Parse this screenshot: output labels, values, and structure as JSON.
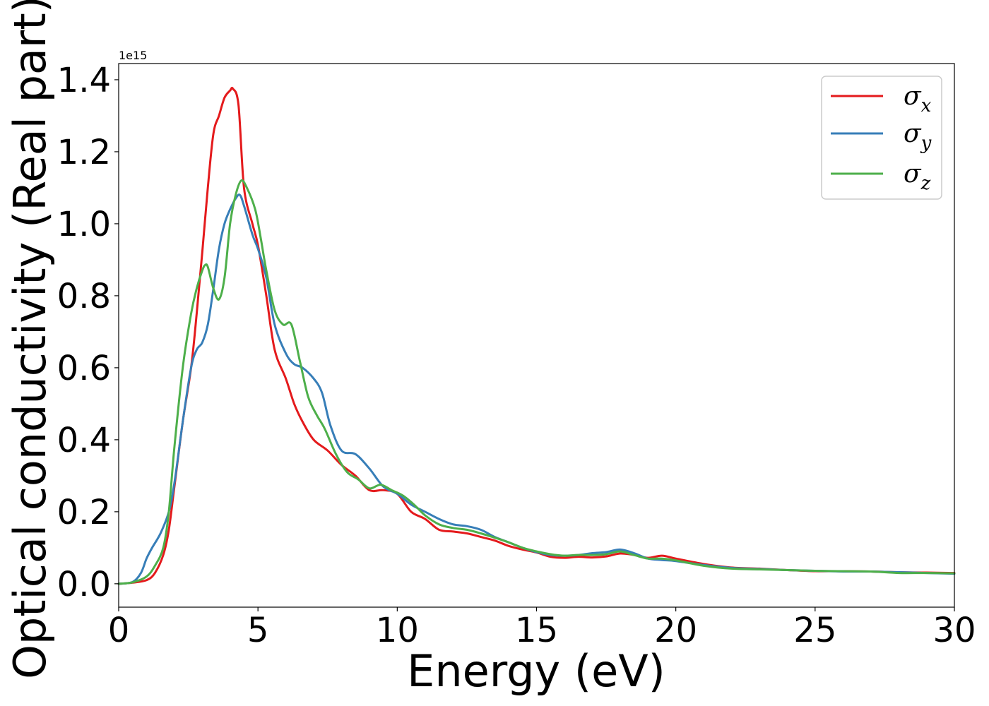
{
  "chart_data": {
    "type": "line",
    "title": "",
    "xlabel": "Energy (eV)",
    "ylabel": "Optical conductivity (Real part)",
    "y_offset_label": "1e15",
    "xlim": [
      0,
      30
    ],
    "ylim": [
      -0.065,
      1.445
    ],
    "x_ticks": [
      0,
      5,
      10,
      15,
      20,
      25,
      30
    ],
    "y_ticks": [
      0.0,
      0.2,
      0.4,
      0.6,
      0.8,
      1.0,
      1.2,
      1.4
    ],
    "x_tick_labels": [
      "0",
      "5",
      "10",
      "15",
      "20",
      "25",
      "30"
    ],
    "y_tick_labels": [
      "0.0",
      "0.2",
      "0.4",
      "0.6",
      "0.8",
      "1.0",
      "1.2",
      "1.4"
    ],
    "grid": false,
    "legend_position": "top-right",
    "series": [
      {
        "name": "σ_x",
        "legend_main": "σ",
        "legend_sub": "x",
        "color": "#e41a1c",
        "x": [
          0,
          0.5,
          1.0,
          1.3,
          1.6,
          1.8,
          2.0,
          2.3,
          2.6,
          2.8,
          3.0,
          3.2,
          3.4,
          3.6,
          3.8,
          4.0,
          4.1,
          4.3,
          4.5,
          4.8,
          5.0,
          5.3,
          5.6,
          6.0,
          6.3,
          6.6,
          7.0,
          7.5,
          8.0,
          8.5,
          9.0,
          9.5,
          10.0,
          10.5,
          11.0,
          11.5,
          12.0,
          12.5,
          13.0,
          13.5,
          14.0,
          14.5,
          15.0,
          15.5,
          16.0,
          16.5,
          17.0,
          17.5,
          18.0,
          18.5,
          19.0,
          19.5,
          20.0,
          21.0,
          22.0,
          23.0,
          24.0,
          25.0,
          26.0,
          27.0,
          28.0,
          29.0,
          30.0
        ],
        "values": [
          0.0,
          0.003,
          0.01,
          0.03,
          0.08,
          0.15,
          0.27,
          0.45,
          0.6,
          0.75,
          0.92,
          1.1,
          1.25,
          1.3,
          1.35,
          1.37,
          1.375,
          1.33,
          1.1,
          1.0,
          0.94,
          0.8,
          0.65,
          0.57,
          0.5,
          0.45,
          0.4,
          0.37,
          0.33,
          0.3,
          0.26,
          0.26,
          0.25,
          0.2,
          0.18,
          0.15,
          0.145,
          0.14,
          0.13,
          0.12,
          0.105,
          0.095,
          0.087,
          0.075,
          0.072,
          0.075,
          0.073,
          0.076,
          0.084,
          0.08,
          0.072,
          0.078,
          0.07,
          0.055,
          0.045,
          0.042,
          0.038,
          0.035,
          0.035,
          0.034,
          0.032,
          0.031,
          0.03
        ]
      },
      {
        "name": "σ_y",
        "legend_main": "σ",
        "legend_sub": "y",
        "color": "#377eb8",
        "x": [
          0,
          0.5,
          0.8,
          1.0,
          1.2,
          1.5,
          1.8,
          2.0,
          2.3,
          2.6,
          2.8,
          3.0,
          3.2,
          3.4,
          3.6,
          3.8,
          4.0,
          4.2,
          4.35,
          4.5,
          4.8,
          5.0,
          5.3,
          5.6,
          6.0,
          6.3,
          6.6,
          7.0,
          7.3,
          7.6,
          8.0,
          8.5,
          9.0,
          9.5,
          10.0,
          10.5,
          11.0,
          11.5,
          12.0,
          12.5,
          13.0,
          13.5,
          14.0,
          14.5,
          15.0,
          15.5,
          16.0,
          16.5,
          17.0,
          17.5,
          18.0,
          18.5,
          19.0,
          19.5,
          20.0,
          21.0,
          22.0,
          23.0,
          24.0,
          25.0,
          26.0,
          27.0,
          28.0,
          29.0,
          30.0
        ],
        "values": [
          0.0,
          0.005,
          0.03,
          0.07,
          0.1,
          0.14,
          0.2,
          0.28,
          0.45,
          0.6,
          0.65,
          0.67,
          0.72,
          0.82,
          0.93,
          1.0,
          1.04,
          1.07,
          1.08,
          1.05,
          0.97,
          0.93,
          0.85,
          0.72,
          0.64,
          0.61,
          0.6,
          0.57,
          0.53,
          0.44,
          0.37,
          0.36,
          0.32,
          0.27,
          0.25,
          0.22,
          0.2,
          0.18,
          0.165,
          0.16,
          0.15,
          0.13,
          0.115,
          0.1,
          0.088,
          0.08,
          0.078,
          0.08,
          0.085,
          0.088,
          0.095,
          0.085,
          0.07,
          0.066,
          0.063,
          0.052,
          0.044,
          0.041,
          0.038,
          0.036,
          0.034,
          0.034,
          0.032,
          0.03,
          0.028
        ]
      },
      {
        "name": "σ_z",
        "legend_main": "σ",
        "legend_sub": "z",
        "color": "#4daf4a",
        "x": [
          0,
          0.5,
          1.0,
          1.3,
          1.6,
          1.8,
          2.0,
          2.3,
          2.6,
          2.8,
          3.0,
          3.1,
          3.2,
          3.4,
          3.6,
          3.8,
          4.0,
          4.2,
          4.4,
          4.6,
          4.9,
          5.1,
          5.3,
          5.6,
          5.9,
          6.2,
          6.5,
          6.8,
          7.1,
          7.4,
          7.8,
          8.2,
          8.6,
          9.0,
          9.4,
          9.8,
          10.2,
          10.6,
          11.0,
          11.5,
          12.0,
          12.5,
          13.0,
          13.5,
          14.0,
          14.5,
          15.0,
          15.5,
          16.0,
          16.5,
          17.0,
          17.5,
          18.0,
          18.5,
          19.0,
          19.5,
          20.0,
          21.0,
          22.0,
          23.0,
          24.0,
          25.0,
          26.0,
          27.0,
          28.0,
          29.0,
          30.0
        ],
        "values": [
          0.0,
          0.004,
          0.02,
          0.05,
          0.1,
          0.2,
          0.38,
          0.6,
          0.75,
          0.82,
          0.87,
          0.885,
          0.88,
          0.82,
          0.79,
          0.85,
          1.0,
          1.08,
          1.12,
          1.1,
          1.04,
          0.96,
          0.87,
          0.76,
          0.72,
          0.72,
          0.62,
          0.52,
          0.47,
          0.43,
          0.36,
          0.31,
          0.29,
          0.265,
          0.275,
          0.26,
          0.245,
          0.22,
          0.19,
          0.165,
          0.155,
          0.15,
          0.14,
          0.128,
          0.115,
          0.1,
          0.09,
          0.082,
          0.078,
          0.08,
          0.08,
          0.082,
          0.09,
          0.08,
          0.07,
          0.07,
          0.065,
          0.05,
          0.042,
          0.04,
          0.038,
          0.036,
          0.035,
          0.034,
          0.03,
          0.03,
          0.029
        ]
      }
    ]
  }
}
